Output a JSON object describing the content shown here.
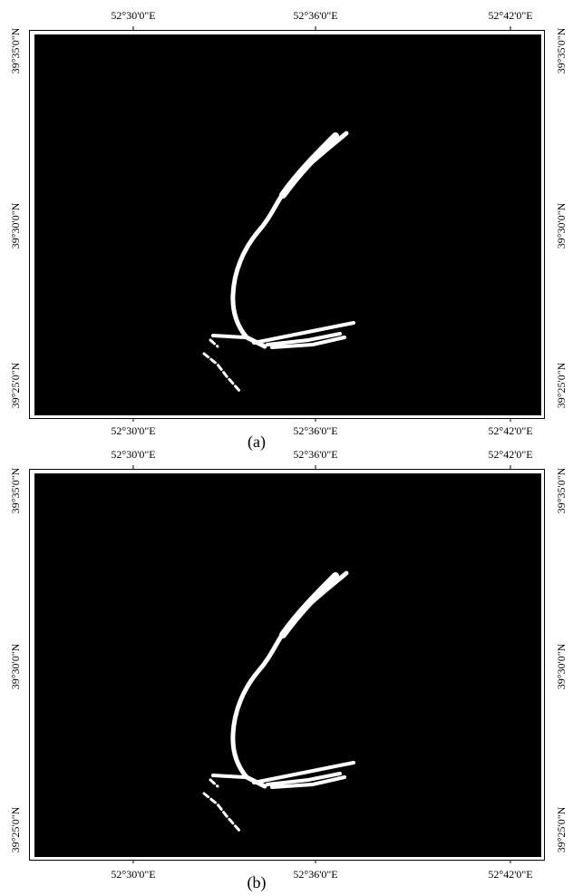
{
  "panels": [
    {
      "caption": "(a)",
      "x_labels": [
        "52°30'0\"E",
        "52°36'0\"E",
        "52°42'0\"E"
      ],
      "y_labels": [
        "39°35'0\"N",
        "39°30'0\"N",
        "39°25'0\"N"
      ]
    },
    {
      "caption": "(b)",
      "x_labels": [
        "52°30'0\"E",
        "52°36'0\"E",
        "52°42'0\"E"
      ],
      "y_labels": [
        "39°35'0\"N",
        "39°30'0\"N",
        "39°25'0\"N"
      ]
    }
  ]
}
